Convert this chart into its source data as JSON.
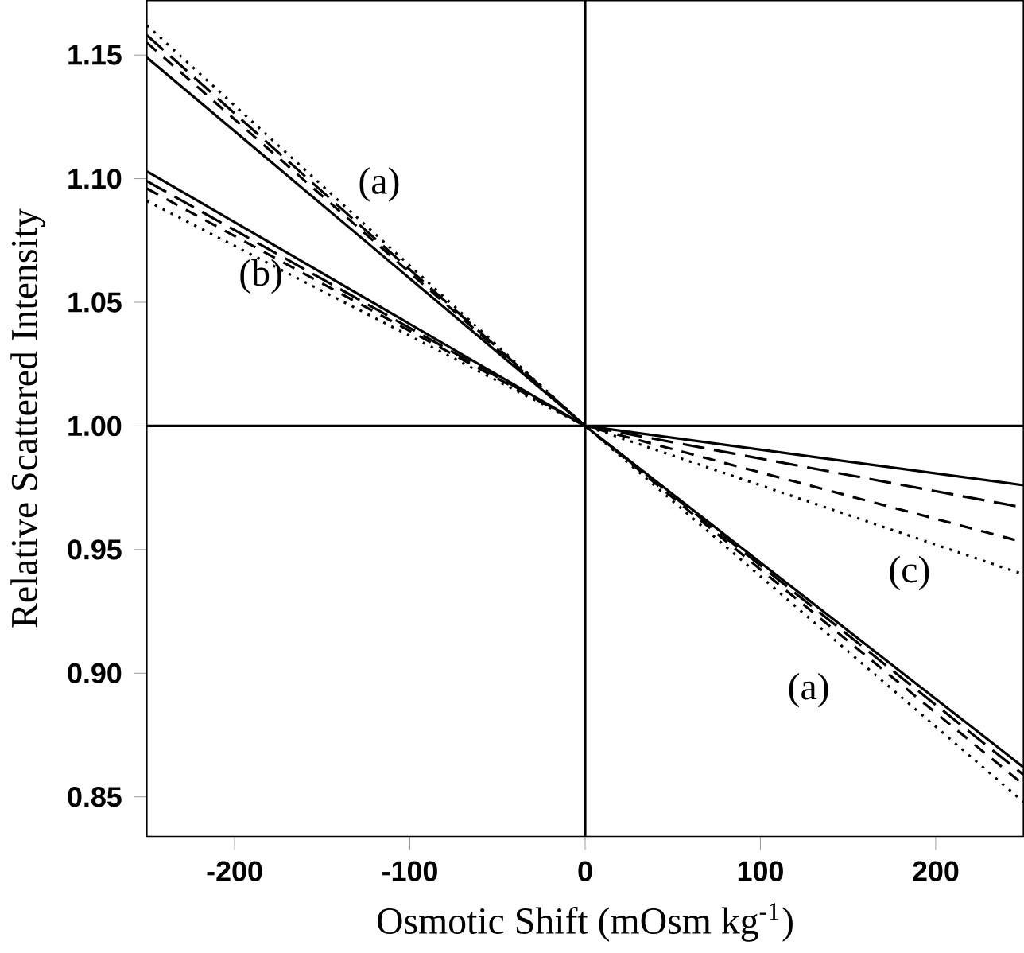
{
  "chart_data": {
    "type": "line",
    "xlabel": "Osmotic Shift (mOsm kg$^{-1}$)",
    "ylabel": "Relative Scattered Intensity",
    "xlim": [
      -250,
      250
    ],
    "ylim": [
      0.834,
      1.172
    ],
    "xticks": [
      -200,
      -100,
      0,
      100,
      200
    ],
    "yticks": [
      {
        "value": 0.85,
        "label": "0.85"
      },
      {
        "value": 0.9,
        "label": "0.90"
      },
      {
        "value": 0.95,
        "label": "0.95"
      },
      {
        "value": 1.0,
        "label": "1.00"
      },
      {
        "value": 1.05,
        "label": "1.05"
      },
      {
        "value": 1.1,
        "label": "1.10"
      },
      {
        "value": 1.15,
        "label": "1.15"
      }
    ],
    "x": [
      -250,
      0,
      250
    ],
    "series": [
      {
        "color": "#000000",
        "line_style": "solid",
        "values": [
          1.149,
          1.0,
          0.862
        ]
      },
      {
        "color": "#000000",
        "line_style": "dashed",
        "values": [
          1.158,
          1.0,
          0.859
        ]
      },
      {
        "color": "#000000",
        "line_style": "dashed",
        "values": [
          1.155,
          1.0,
          0.855
        ]
      },
      {
        "color": "#000000",
        "line_style": "dotted",
        "values": [
          1.162,
          1.0,
          0.848
        ]
      },
      {
        "color": "#000000",
        "line_style": "solid",
        "values": [
          1.103,
          1.0,
          0.976
        ]
      },
      {
        "color": "#000000",
        "line_style": "dashed",
        "values": [
          1.099,
          1.0,
          0.967
        ]
      },
      {
        "color": "#000000",
        "line_style": "dashed",
        "values": [
          1.096,
          1.0,
          0.953
        ]
      },
      {
        "color": "#000000",
        "line_style": "dotted",
        "values": [
          1.091,
          1.0,
          0.94
        ]
      }
    ],
    "ref_lines": [
      {
        "axis": "x",
        "value": 0,
        "color": "#000000"
      },
      {
        "axis": "y",
        "value": 1.0,
        "color": "#000000"
      }
    ],
    "annotations": [
      "(a)",
      "(b)",
      "(c)",
      "(a)"
    ],
    "grid": false,
    "marker": "none"
  }
}
